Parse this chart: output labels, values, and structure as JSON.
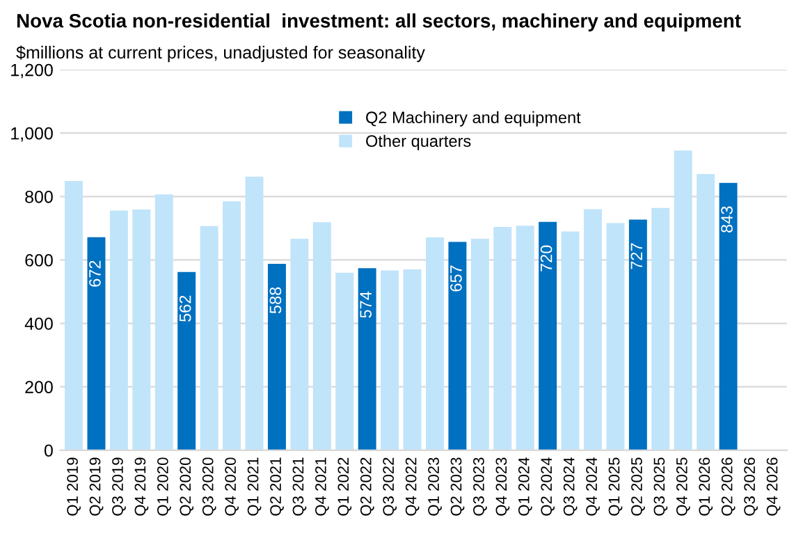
{
  "chart_data": {
    "type": "bar",
    "title": "Nova Scotia non-residential  investment: all sectors, machinery and equipment",
    "subtitle": "$millions at current prices, unadjusted for seasonality",
    "categories": [
      "Q1 2019",
      "Q2 2019",
      "Q3 2019",
      "Q4 2019",
      "Q1 2020",
      "Q2 2020",
      "Q3 2020",
      "Q4 2020",
      "Q1 2021",
      "Q2 2021",
      "Q3 2021",
      "Q4 2021",
      "Q1 2022",
      "Q2 2022",
      "Q3 2022",
      "Q4 2022",
      "Q1 2023",
      "Q2 2023",
      "Q3 2023",
      "Q4 2023",
      "Q1 2024",
      "Q2 2024",
      "Q3 2024",
      "Q4 2024",
      "Q1 2025",
      "Q2 2025",
      "Q3 2025",
      "Q4 2025",
      "Q1 2026",
      "Q2 2026",
      "Q3 2026",
      "Q4 2026"
    ],
    "series": [
      {
        "name": "Q2 Machinery and equipment",
        "color": "#0070c0",
        "values": [
          null,
          672,
          null,
          null,
          null,
          562,
          null,
          null,
          null,
          588,
          null,
          null,
          null,
          574,
          null,
          null,
          null,
          657,
          null,
          null,
          null,
          720,
          null,
          null,
          null,
          727,
          null,
          null,
          null,
          843,
          null,
          null
        ],
        "value_labels": [
          null,
          "672",
          null,
          null,
          null,
          "562",
          null,
          null,
          null,
          "588",
          null,
          null,
          null,
          "574",
          null,
          null,
          null,
          "657",
          null,
          null,
          null,
          "720",
          null,
          null,
          null,
          "727",
          null,
          null,
          null,
          "843",
          null,
          null
        ]
      },
      {
        "name": "Other quarters",
        "color": "#c0e4fa",
        "values": [
          849,
          null,
          756,
          759,
          807,
          null,
          707,
          785,
          863,
          null,
          667,
          719,
          560,
          null,
          567,
          570,
          671,
          null,
          667,
          704,
          708,
          null,
          690,
          760,
          716,
          null,
          764,
          945,
          871,
          null,
          null,
          null
        ]
      }
    ],
    "ylim": [
      0,
      1200
    ],
    "yticks": [
      0,
      200,
      400,
      600,
      800,
      {
        "value": 1000,
        "label": "1,000"
      },
      {
        "value": 1200,
        "label": "1,200"
      }
    ],
    "grid": "y",
    "legend": "top"
  }
}
